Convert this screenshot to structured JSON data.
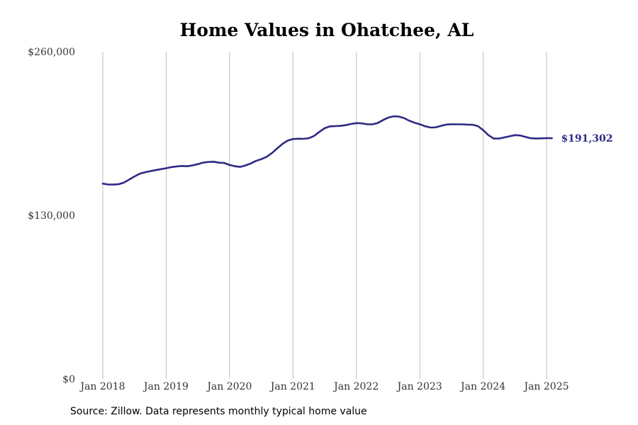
{
  "title": "Home Values in Ohatchee, AL",
  "source": "Source: Zillow. Data represents monthly typical home value",
  "colors": {
    "line": "#2e2a85",
    "grid": "#bdbdbd",
    "text": "#333333"
  },
  "chart_data": {
    "type": "line",
    "title": "Home Values in Ohatchee, AL",
    "xlabel": "",
    "ylabel": "",
    "ylim": [
      0,
      260000
    ],
    "yticks": [
      0,
      130000,
      260000
    ],
    "ytick_labels": [
      "$0",
      "$130,000",
      "$260,000"
    ],
    "xticks": [
      "2018-01",
      "2019-01",
      "2020-01",
      "2021-01",
      "2022-01",
      "2023-01",
      "2024-01",
      "2025-01"
    ],
    "xtick_labels": [
      "Jan 2018",
      "Jan 2019",
      "Jan 2020",
      "Jan 2021",
      "Jan 2022",
      "Jan 2023",
      "Jan 2024",
      "Jan 2025"
    ],
    "grid": "vertical",
    "end_label": "$191,302",
    "x": [
      "2018-01",
      "2018-02",
      "2018-03",
      "2018-04",
      "2018-05",
      "2018-06",
      "2018-07",
      "2018-08",
      "2018-09",
      "2018-10",
      "2018-11",
      "2018-12",
      "2019-01",
      "2019-02",
      "2019-03",
      "2019-04",
      "2019-05",
      "2019-06",
      "2019-07",
      "2019-08",
      "2019-09",
      "2019-10",
      "2019-11",
      "2019-12",
      "2020-01",
      "2020-02",
      "2020-03",
      "2020-04",
      "2020-05",
      "2020-06",
      "2020-07",
      "2020-08",
      "2020-09",
      "2020-10",
      "2020-11",
      "2020-12",
      "2021-01",
      "2021-02",
      "2021-03",
      "2021-04",
      "2021-05",
      "2021-06",
      "2021-07",
      "2021-08",
      "2021-09",
      "2021-10",
      "2021-11",
      "2021-12",
      "2022-01",
      "2022-02",
      "2022-03",
      "2022-04",
      "2022-05",
      "2022-06",
      "2022-07",
      "2022-08",
      "2022-09",
      "2022-10",
      "2022-11",
      "2022-12",
      "2023-01",
      "2023-02",
      "2023-03",
      "2023-04",
      "2023-05",
      "2023-06",
      "2023-07",
      "2023-08",
      "2023-09",
      "2023-10",
      "2023-11",
      "2023-12",
      "2024-01",
      "2024-02",
      "2024-03",
      "2024-04",
      "2024-05",
      "2024-06",
      "2024-07",
      "2024-08",
      "2024-09",
      "2024-10",
      "2024-11",
      "2024-12",
      "2025-01",
      "2025-02"
    ],
    "series": [
      {
        "values": [
          155200,
          154500,
          154400,
          154700,
          156000,
          158400,
          160900,
          163100,
          164300,
          165100,
          165900,
          166700,
          167400,
          168300,
          168900,
          169200,
          169000,
          169700,
          170700,
          171900,
          172400,
          172600,
          171800,
          171600,
          170000,
          169000,
          168500,
          169600,
          171200,
          173200,
          174600,
          176500,
          179400,
          183100,
          186700,
          189400,
          190600,
          190900,
          190800,
          191300,
          193100,
          196300,
          199200,
          200700,
          200900,
          201100,
          201700,
          202600,
          203300,
          203100,
          202400,
          202300,
          203300,
          205600,
          207600,
          208700,
          208500,
          207300,
          205200,
          203600,
          202400,
          200800,
          199800,
          199900,
          201100,
          202100,
          202400,
          202300,
          202300,
          202100,
          202000,
          200900,
          197700,
          193700,
          191000,
          191000,
          191900,
          192800,
          193700,
          193500,
          192300,
          191300,
          191000,
          191200,
          191300,
          191302
        ]
      }
    ]
  }
}
